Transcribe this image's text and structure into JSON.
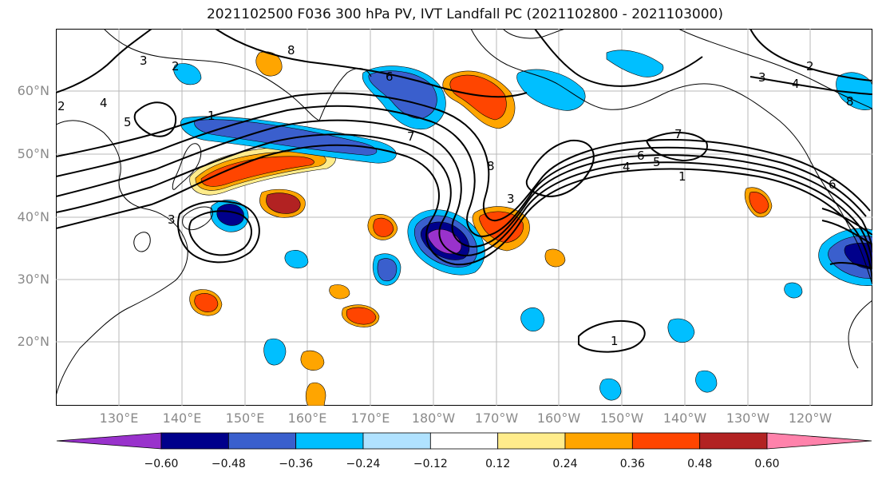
{
  "title": "2021102500 F036 300 hPa PV, IVT Landfall PC (2021102800 - 2021103000)",
  "map": {
    "lat_labels": [
      "60°N",
      "50°N",
      "40°N",
      "30°N",
      "20°N"
    ],
    "lon_labels": [
      "130°E",
      "140°E",
      "150°E",
      "160°E",
      "170°E",
      "180°W",
      "170°W",
      "160°W",
      "150°W",
      "140°W",
      "130°W",
      "120°W"
    ],
    "contour_labels": [
      "1",
      "2",
      "3",
      "4",
      "5",
      "6",
      "7",
      "8"
    ],
    "colors": {
      "neg_060": "#9932cc",
      "neg_048": "#00008b",
      "neg_036": "#3a5fcd",
      "neg_024": "#00bfff",
      "neg_012": "#b0e2ff",
      "pos_012": "#ffec8b",
      "pos_024": "#ffa500",
      "pos_036": "#ff4500",
      "pos_048": "#b22222",
      "pos_060": "#ff82ab"
    }
  },
  "colorbar": {
    "ticks": [
      "−0.60",
      "−0.48",
      "−0.36",
      "−0.24",
      "−0.12",
      "0.12",
      "0.24",
      "0.36",
      "0.48",
      "0.60"
    ],
    "colors": [
      "#9932cc",
      "#00008b",
      "#3a5fcd",
      "#00bfff",
      "#b0e2ff",
      "#ffffff",
      "#ffec8b",
      "#ffa500",
      "#ff4500",
      "#b22222",
      "#ff82ab"
    ]
  }
}
